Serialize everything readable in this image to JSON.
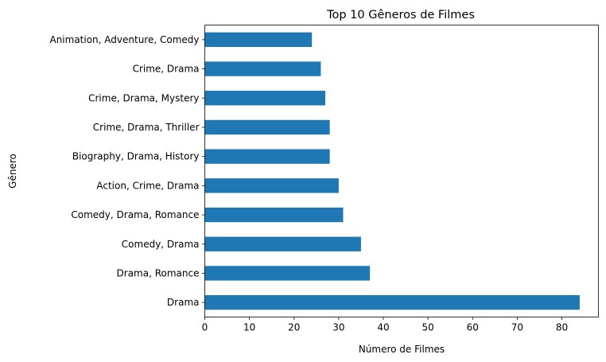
{
  "chart_data": {
    "type": "bar",
    "orientation": "horizontal",
    "title": "Top 10 Gêneros de Filmes",
    "xlabel": "Número de Filmes",
    "ylabel": "Gênero",
    "xlim": [
      0,
      88.2
    ],
    "x_ticks": [
      0,
      10,
      20,
      30,
      40,
      50,
      60,
      70,
      80
    ],
    "grid": false,
    "legend": "none",
    "bar_color": "#1f77b4",
    "categories": [
      "Drama",
      "Drama, Romance",
      "Comedy, Drama",
      "Comedy, Drama, Romance",
      "Action, Crime, Drama",
      "Biography, Drama, History",
      "Crime, Drama, Thriller",
      "Crime, Drama, Mystery",
      "Crime, Drama",
      "Animation, Adventure, Comedy"
    ],
    "values": [
      84,
      37,
      35,
      31,
      30,
      28,
      28,
      27,
      26,
      24
    ]
  }
}
